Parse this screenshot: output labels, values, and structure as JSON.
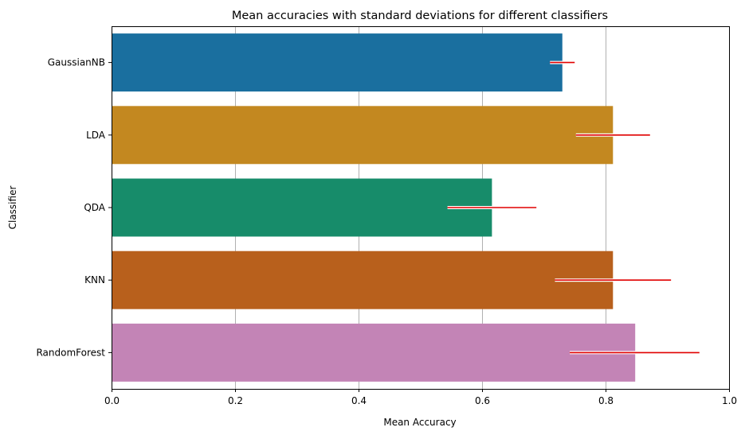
{
  "chart_data": {
    "type": "bar",
    "orientation": "horizontal",
    "title": "Mean accuracies with standard deviations for different classifiers",
    "xlabel": "Mean Accuracy",
    "ylabel": "Classifier",
    "xlim": [
      0,
      1
    ],
    "xticks": [
      "0.0",
      "0.2",
      "0.4",
      "0.6",
      "0.8",
      "1.0"
    ],
    "grid": "x",
    "categories": [
      "GaussianNB",
      "LDA",
      "QDA",
      "KNN",
      "RandomForest"
    ],
    "values": [
      0.73,
      0.812,
      0.616,
      0.812,
      0.848
    ],
    "error_intervals": [
      [
        0.71,
        0.75
      ],
      [
        0.752,
        0.872
      ],
      [
        0.544,
        0.688
      ],
      [
        0.718,
        0.906
      ],
      [
        0.742,
        0.952
      ]
    ],
    "colors": [
      "#1a6f9f",
      "#c38820",
      "#178c6a",
      "#b8601c",
      "#c384b6"
    ],
    "error_color": "#e00000"
  }
}
